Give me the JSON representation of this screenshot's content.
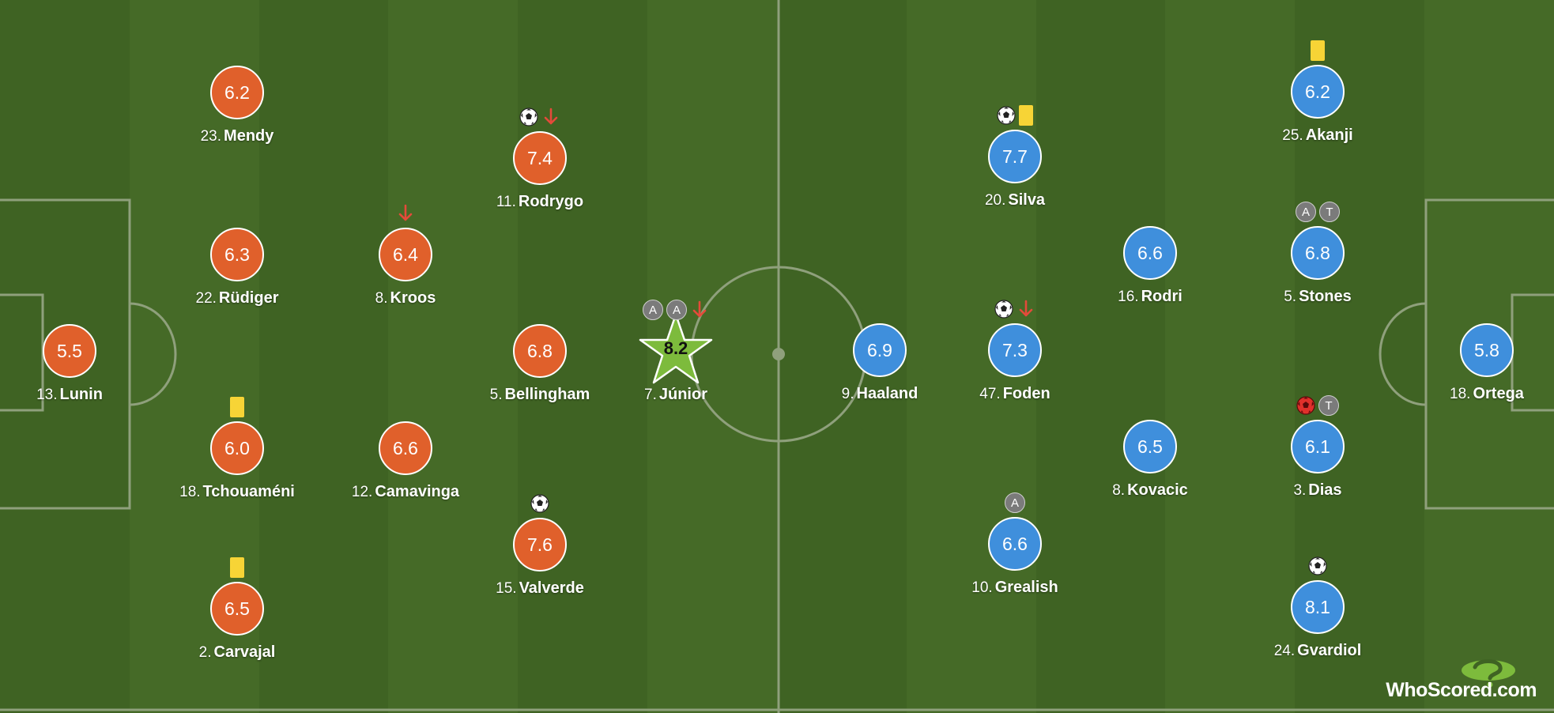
{
  "colors": {
    "home": "#e0602b",
    "away": "#3f8fdc",
    "motm": "#7dbb3c",
    "card_yellow": "#f7d436",
    "sub_off_arrow": "#e44a3a",
    "badge": "#7b7b7b"
  },
  "home_players": [
    {
      "number": "13.",
      "name": "Lunin",
      "rating": "5.5",
      "events": []
    },
    {
      "number": "23.",
      "name": "Mendy",
      "rating": "6.2",
      "events": []
    },
    {
      "number": "22.",
      "name": "Rüdiger",
      "rating": "6.3",
      "events": []
    },
    {
      "number": "18.",
      "name": "Tchouaméni",
      "rating": "6.0",
      "events": [
        {
          "type": "yellow-card"
        }
      ]
    },
    {
      "number": "2.",
      "name": "Carvajal",
      "rating": "6.5",
      "events": [
        {
          "type": "yellow-card"
        }
      ]
    },
    {
      "number": "8.",
      "name": "Kroos",
      "rating": "6.4",
      "events": [
        {
          "type": "sub-off"
        }
      ]
    },
    {
      "number": "12.",
      "name": "Camavinga",
      "rating": "6.6",
      "events": []
    },
    {
      "number": "11.",
      "name": "Rodrygo",
      "rating": "7.4",
      "events": [
        {
          "type": "goal"
        },
        {
          "type": "sub-off"
        }
      ]
    },
    {
      "number": "5.",
      "name": "Bellingham",
      "rating": "6.8",
      "events": []
    },
    {
      "number": "15.",
      "name": "Valverde",
      "rating": "7.6",
      "events": [
        {
          "type": "goal"
        }
      ]
    },
    {
      "number": "7.",
      "name": "Júnior",
      "rating": "8.2",
      "motm": true,
      "events": [
        {
          "type": "assist",
          "label": "A"
        },
        {
          "type": "assist",
          "label": "A"
        },
        {
          "type": "sub-off"
        }
      ]
    }
  ],
  "away_players": [
    {
      "number": "9.",
      "name": "Haaland",
      "rating": "6.9",
      "events": []
    },
    {
      "number": "20.",
      "name": "Silva",
      "rating": "7.7",
      "events": [
        {
          "type": "goal"
        },
        {
          "type": "yellow-card"
        }
      ]
    },
    {
      "number": "47.",
      "name": "Foden",
      "rating": "7.3",
      "events": [
        {
          "type": "goal"
        },
        {
          "type": "sub-off"
        }
      ]
    },
    {
      "number": "10.",
      "name": "Grealish",
      "rating": "6.6",
      "events": [
        {
          "type": "assist",
          "label": "A"
        }
      ]
    },
    {
      "number": "16.",
      "name": "Rodri",
      "rating": "6.6",
      "events": []
    },
    {
      "number": "8.",
      "name": "Kovacic",
      "rating": "6.5",
      "events": []
    },
    {
      "number": "25.",
      "name": "Akanji",
      "rating": "6.2",
      "events": [
        {
          "type": "yellow-card"
        }
      ]
    },
    {
      "number": "5.",
      "name": "Stones",
      "rating": "6.8",
      "events": [
        {
          "type": "assist",
          "label": "A"
        },
        {
          "type": "badge",
          "label": "T"
        }
      ]
    },
    {
      "number": "3.",
      "name": "Dias",
      "rating": "6.1",
      "events": [
        {
          "type": "own-goal"
        },
        {
          "type": "badge",
          "label": "T"
        }
      ]
    },
    {
      "number": "24.",
      "name": "Gvardiol",
      "rating": "8.1",
      "events": [
        {
          "type": "goal"
        }
      ]
    },
    {
      "number": "18.",
      "name": "Ortega",
      "rating": "5.8",
      "events": []
    }
  ],
  "branding": {
    "who": "WhoScored",
    "com": ".com",
    "icon": "whoscored-question-icon"
  }
}
